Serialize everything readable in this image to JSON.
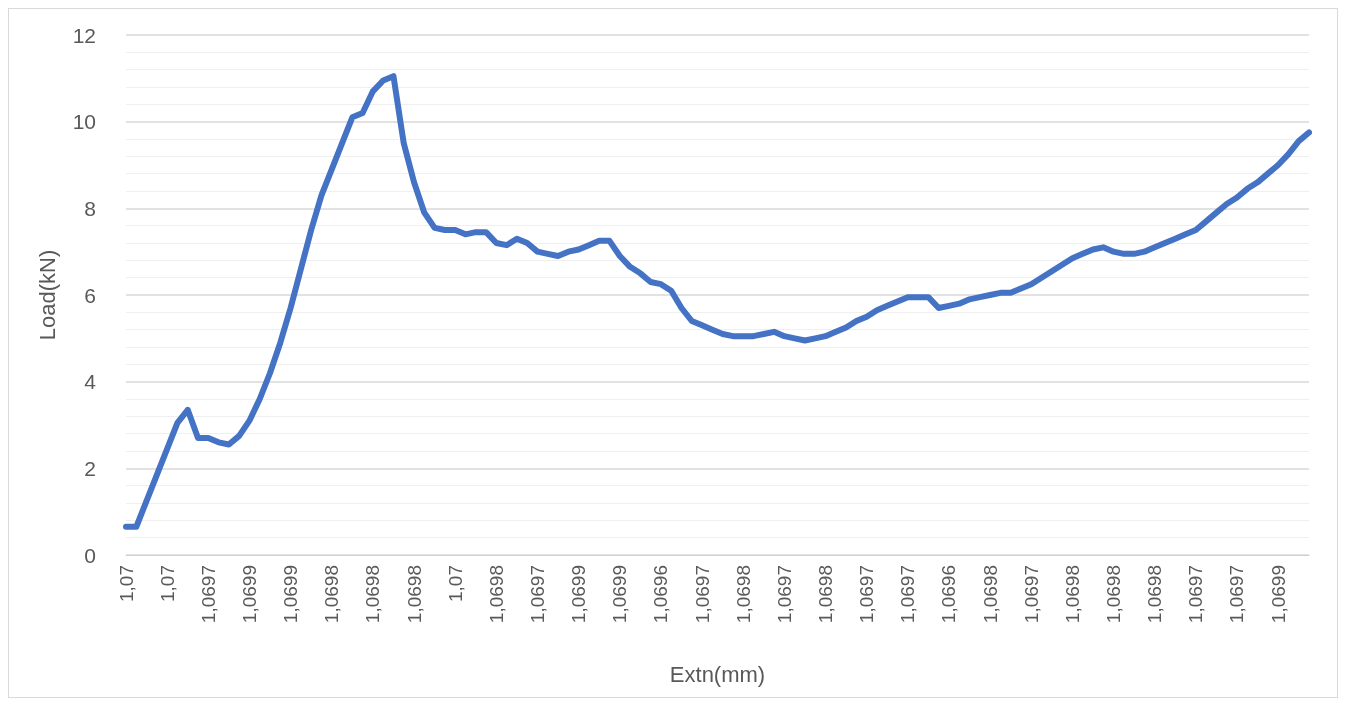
{
  "chart_data": {
    "type": "line",
    "xlabel": "Extn(mm)",
    "ylabel": "Load(kN)",
    "categories": [
      "1,07",
      null,
      null,
      null,
      "1,07",
      null,
      null,
      null,
      "1,0697",
      null,
      null,
      null,
      "1,0699",
      null,
      null,
      null,
      "1,0699",
      null,
      null,
      null,
      "1,0698",
      null,
      null,
      null,
      "1,0698",
      null,
      null,
      null,
      "1,0698",
      null,
      null,
      null,
      "1,07",
      null,
      null,
      null,
      "1,0698",
      null,
      null,
      null,
      "1,0697",
      null,
      null,
      null,
      "1,0699",
      null,
      null,
      null,
      "1,0699",
      null,
      null,
      null,
      "1,0696",
      null,
      null,
      null,
      "1,0697",
      null,
      null,
      null,
      "1,0698",
      null,
      null,
      null,
      "1,0697",
      null,
      null,
      null,
      "1,0698",
      null,
      null,
      null,
      "1,0697",
      null,
      null,
      null,
      "1,0697",
      null,
      null,
      null,
      "1,0696",
      null,
      null,
      null,
      "1,0698",
      null,
      null,
      null,
      "1,0697",
      null,
      null,
      null,
      "1,0698",
      null,
      null,
      null,
      "1,0698",
      null,
      null,
      null,
      "1,0698",
      null,
      null,
      null,
      "1,0697",
      null,
      null,
      null,
      "1,0697",
      null,
      null,
      null,
      "1,0699",
      null,
      null,
      null
    ],
    "series": [
      {
        "color": "#4472c4",
        "values": [
          0.65,
          0.65,
          1.25,
          1.85,
          2.45,
          3.05,
          3.35,
          2.7,
          2.7,
          2.6,
          2.55,
          2.75,
          3.1,
          3.6,
          4.2,
          4.9,
          5.7,
          6.6,
          7.5,
          8.3,
          8.9,
          9.5,
          10.1,
          10.2,
          10.7,
          10.95,
          11.05,
          9.5,
          8.6,
          7.9,
          7.55,
          7.5,
          7.5,
          7.4,
          7.45,
          7.45,
          7.2,
          7.15,
          7.3,
          7.2,
          7.0,
          6.95,
          6.9,
          7.0,
          7.05,
          7.15,
          7.25,
          7.25,
          6.9,
          6.65,
          6.5,
          6.3,
          6.25,
          6.1,
          5.7,
          5.4,
          5.3,
          5.2,
          5.1,
          5.05,
          5.05,
          5.05,
          5.1,
          5.15,
          5.05,
          5.0,
          4.95,
          5.0,
          5.05,
          5.15,
          5.25,
          5.4,
          5.5,
          5.65,
          5.75,
          5.85,
          5.95,
          5.95,
          5.95,
          5.7,
          5.75,
          5.8,
          5.9,
          5.95,
          6.0,
          6.05,
          6.05,
          6.15,
          6.25,
          6.4,
          6.55,
          6.7,
          6.85,
          6.95,
          7.05,
          7.1,
          7.0,
          6.95,
          6.95,
          7.0,
          7.1,
          7.2,
          7.3,
          7.4,
          7.5,
          7.7,
          7.9,
          8.1,
          8.25,
          8.45,
          8.6,
          8.8,
          9.0,
          9.25,
          9.55,
          9.75
        ]
      }
    ],
    "ylim": [
      0,
      12
    ],
    "yticks": [
      0,
      2,
      4,
      6,
      8,
      10,
      12
    ],
    "grid": "y",
    "marker": "none",
    "line_style": "solid"
  }
}
